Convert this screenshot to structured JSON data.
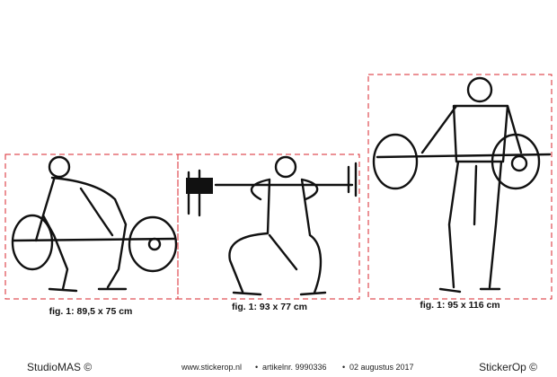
{
  "figures": [
    {
      "caption": "fig. 1: 89,5 x 75 cm"
    },
    {
      "caption": "fig. 1: 93 x 77 cm"
    },
    {
      "caption": "fig. 1: 95 x 116 cm"
    }
  ],
  "footer": {
    "left": "StudioMAS ©",
    "website": "www.stickerop.nl",
    "article": "artikelnr. 9990336",
    "date": "02 augustus 2017",
    "right": "StickerOp ©"
  }
}
